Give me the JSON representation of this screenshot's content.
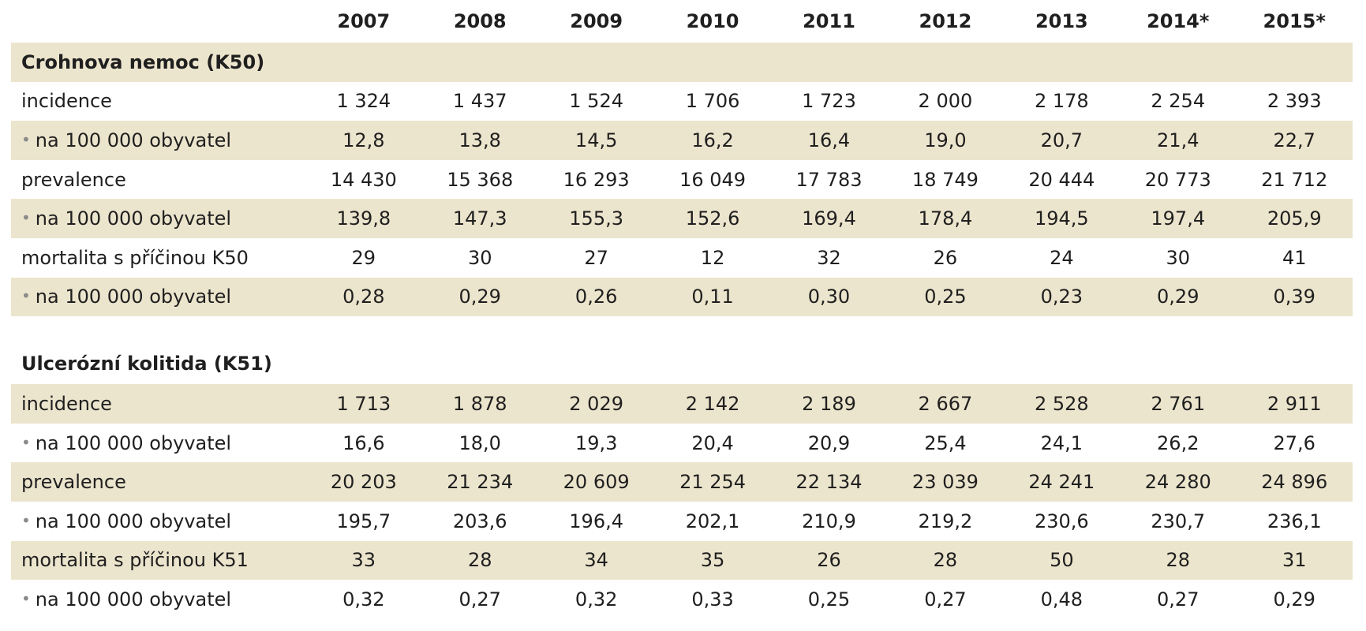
{
  "header": {
    "years": [
      "2007",
      "2008",
      "2009",
      "2010",
      "2011",
      "2012",
      "2013",
      "2014*",
      "2015*"
    ]
  },
  "sections": [
    {
      "title": "Crohnova nemoc (K50)",
      "rows": [
        {
          "label": "incidence",
          "bullet": false,
          "values": [
            "1 324",
            "1 437",
            "1 524",
            "1 706",
            "1 723",
            "2 000",
            "2 178",
            "2 254",
            "2 393"
          ]
        },
        {
          "label": "na 100 000 obyvatel",
          "bullet": true,
          "values": [
            "12,8",
            "13,8",
            "14,5",
            "16,2",
            "16,4",
            "19,0",
            "20,7",
            "21,4",
            "22,7"
          ]
        },
        {
          "label": "prevalence",
          "bullet": false,
          "values": [
            "14 430",
            "15 368",
            "16 293",
            "16 049",
            "17 783",
            "18 749",
            "20 444",
            "20 773",
            "21 712"
          ]
        },
        {
          "label": "na 100 000 obyvatel",
          "bullet": true,
          "values": [
            "139,8",
            "147,3",
            "155,3",
            "152,6",
            "169,4",
            "178,4",
            "194,5",
            "197,4",
            "205,9"
          ]
        },
        {
          "label": "mortalita s příčinou K50",
          "bullet": false,
          "values": [
            "29",
            "30",
            "27",
            "12",
            "32",
            "26",
            "24",
            "30",
            "41"
          ]
        },
        {
          "label": "na 100 000 obyvatel",
          "bullet": true,
          "values": [
            "0,28",
            "0,29",
            "0,26",
            "0,11",
            "0,30",
            "0,25",
            "0,23",
            "0,29",
            "0,39"
          ]
        }
      ]
    },
    {
      "title": "Ulcerózní kolitida (K51)",
      "rows": [
        {
          "label": "incidence",
          "bullet": false,
          "values": [
            "1 713",
            "1 878",
            "2 029",
            "2 142",
            "2 189",
            "2 667",
            "2 528",
            "2 761",
            "2 911"
          ]
        },
        {
          "label": "na 100 000 obyvatel",
          "bullet": true,
          "values": [
            "16,6",
            "18,0",
            "19,3",
            "20,4",
            "20,9",
            "25,4",
            "24,1",
            "26,2",
            "27,6"
          ]
        },
        {
          "label": "prevalence",
          "bullet": false,
          "values": [
            "20 203",
            "21 234",
            "20 609",
            "21 254",
            "22 134",
            "23 039",
            "24 241",
            "24 280",
            "24 896"
          ]
        },
        {
          "label": "na 100 000 obyvatel",
          "bullet": true,
          "values": [
            "195,7",
            "203,6",
            "196,4",
            "202,1",
            "210,9",
            "219,2",
            "230,6",
            "230,7",
            "236,1"
          ]
        },
        {
          "label": "mortalita s příčinou K51",
          "bullet": false,
          "values": [
            "33",
            "28",
            "34",
            "35",
            "26",
            "28",
            "50",
            "28",
            "31"
          ]
        },
        {
          "label": "na 100 000 obyvatel",
          "bullet": true,
          "values": [
            "0,32",
            "0,27",
            "0,32",
            "0,33",
            "0,25",
            "0,27",
            "0,48",
            "0,27",
            "0,29"
          ]
        }
      ]
    }
  ],
  "colors": {
    "row_shade": "#ece5cd",
    "bullet": "#8a8a8a",
    "text": "#1f1f1f"
  }
}
